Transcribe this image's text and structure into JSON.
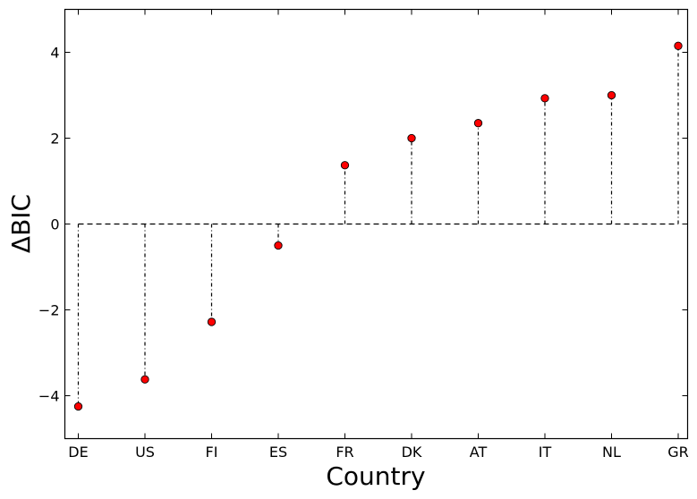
{
  "chart_data": {
    "type": "scatter",
    "style": "stem",
    "xlabel": "Country",
    "ylabel": "ΔBIC",
    "categories": [
      "DE",
      "US",
      "FI",
      "ES",
      "FR",
      "DK",
      "AT",
      "IT",
      "NL",
      "GR"
    ],
    "values": [
      -4.25,
      -3.62,
      -2.28,
      -0.5,
      1.37,
      2.0,
      2.35,
      2.93,
      3.0,
      4.15
    ],
    "ylim": [
      -5,
      5
    ],
    "yticks": [
      4,
      2,
      0,
      -2,
      -4
    ],
    "ytick_labels": [
      "4",
      "2",
      "0",
      "−2",
      "−4"
    ],
    "baseline": 0,
    "marker_color": "#ff0000",
    "grid": false
  }
}
